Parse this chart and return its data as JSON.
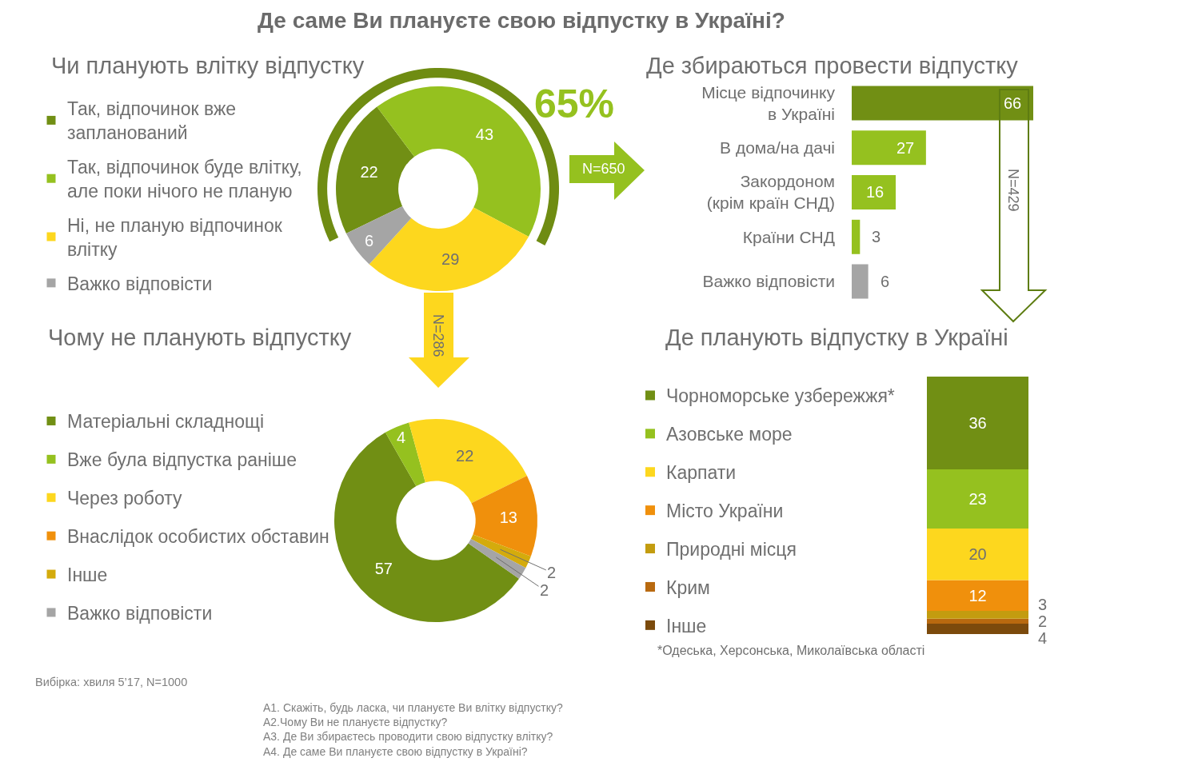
{
  "chart_data": [
    {
      "type": "other",
      "title": "Де саме Ви плануєте свою відпустку в Україні?",
      "annotations": [
        "Вибірка: хвиля 5’17, N=1000",
        "А1. Скажіть, будь ласка, чи плануєте Ви влітку відпустку?\nА2.Чому Ви не плануєте відпустку?\nА3. Де Ви збираєтесь проводити свою відпустку влітку?\nА4. Де саме Ви плануєте свою відпустку в Україні?"
      ]
    },
    {
      "type": "donut",
      "title": "Чи планують влітку відпустку",
      "categories": [
        "Так, відпочинок вже\nзапланований",
        "Так, відпочинок буде влітку,\nале поки нічого не планую",
        "Ні, не планую відпочинок\nвлітку",
        "Важко відповісти"
      ],
      "values": [
        22,
        43,
        29,
        6
      ],
      "colors": [
        "#718f14",
        "#95c11f",
        "#fdd71e",
        "#a5a5a5"
      ],
      "data_labels": true,
      "legend": "left",
      "annotations": [
        "65%"
      ]
    },
    {
      "type": "bar",
      "orientation": "horizontal",
      "title": "Де збираються провести відпустку",
      "categories": [
        "Місце відпочинку\nв Україні",
        "В дома/на дачі",
        "Закордоном\n(крім країн СНД)",
        "Країни СНД",
        "Важко відповісти"
      ],
      "values": [
        66,
        27,
        16,
        3,
        6
      ],
      "colors": [
        "#718f14",
        "#95c11f",
        "#95c11f",
        "#95c11f",
        "#a5a5a5"
      ],
      "data_labels": true,
      "annotations": [
        "N=650"
      ]
    },
    {
      "type": "donut",
      "title": "Чому не планують відпустку",
      "categories": [
        "Матеріальні складнощі",
        "Вже була відпустка раніше",
        "Через роботу",
        "Внаслідок особистих обставин",
        "Інше",
        "Важко відповісти"
      ],
      "values": [
        57,
        4,
        22,
        13,
        2,
        2
      ],
      "colors": [
        "#718f14",
        "#95c11f",
        "#fdd71e",
        "#f0900c",
        "#d4ab0c",
        "#a5a5a5"
      ],
      "data_labels": true,
      "legend": "left",
      "annotations": [
        "N=286"
      ]
    },
    {
      "type": "bar",
      "stacked": true,
      "title": "Де планують відпустку в Україні",
      "categories": [
        null
      ],
      "series": [
        {
          "name": "Інше",
          "color": "#7b4a0c",
          "values": [
            4
          ]
        },
        {
          "name": "Крим",
          "color": "#b8690f",
          "values": [
            2
          ]
        },
        {
          "name": "Природні місця",
          "color": "#c39c0f",
          "values": [
            3
          ]
        },
        {
          "name": "Місто України",
          "color": "#f0900c",
          "values": [
            12
          ]
        },
        {
          "name": "Карпати",
          "color": "#fdd71e",
          "values": [
            20
          ]
        },
        {
          "name": "Азовське море",
          "color": "#95c11f",
          "values": [
            23
          ]
        },
        {
          "name": "Чорноморське узбережжя*",
          "color": "#718f14",
          "values": [
            36
          ]
        }
      ],
      "data_labels": true,
      "legend": "left",
      "annotations": [
        "N=429",
        "*Одеська, Херсонська, Миколаївська області"
      ]
    }
  ]
}
